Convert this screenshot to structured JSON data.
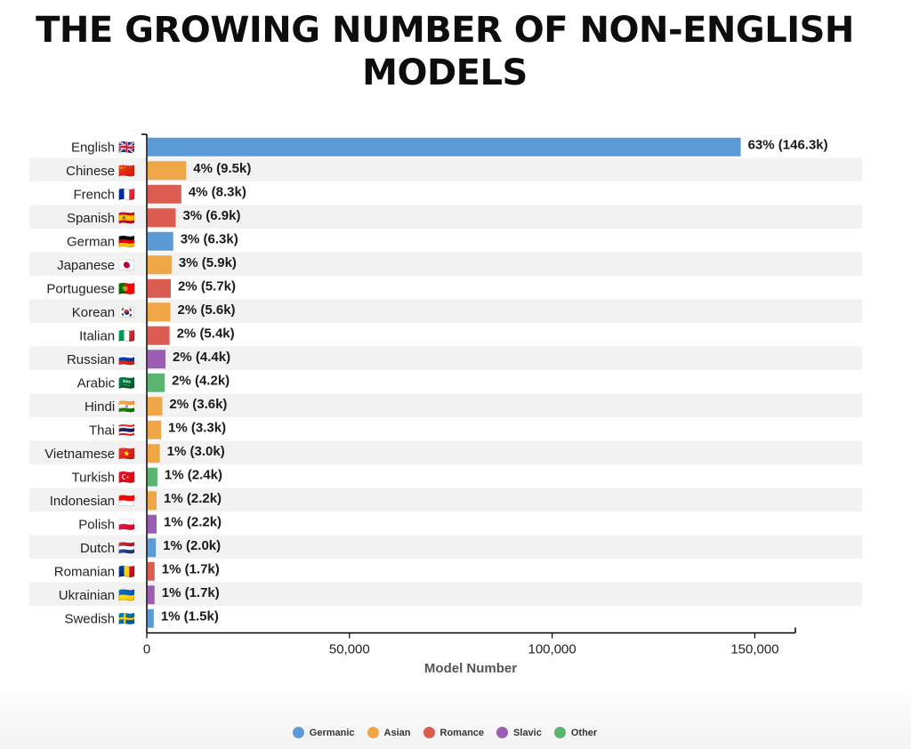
{
  "page": {
    "title": "THE GROWING NUMBER OF NON-ENGLISH MODELS"
  },
  "chart_data": {
    "type": "bar",
    "orientation": "horizontal",
    "title": "THE GROWING NUMBER OF NON-ENGLISH MODELS",
    "xlabel": "Model Number",
    "ylabel": "",
    "xlim": [
      0,
      160000
    ],
    "xticks": [
      0,
      50000,
      100000,
      150000
    ],
    "xtick_labels": [
      "0",
      "50,000",
      "100,000",
      "150,000"
    ],
    "grid": false,
    "alternating_row_shading": true,
    "legend_position": "bottom-center",
    "families": [
      {
        "name": "Germanic",
        "color": "#5b9bd5"
      },
      {
        "name": "Asian",
        "color": "#eea646"
      },
      {
        "name": "Romance",
        "color": "#db5c50"
      },
      {
        "name": "Slavic",
        "color": "#9b5cb4"
      },
      {
        "name": "Other",
        "color": "#5bb571"
      }
    ],
    "bars": [
      {
        "category": "English 🇬🇧",
        "family": "Germanic",
        "value": 146300,
        "label": "63% (146.3k)"
      },
      {
        "category": "Chinese 🇨🇳",
        "family": "Asian",
        "value": 9500,
        "label": "4% (9.5k)"
      },
      {
        "category": "French 🇫🇷",
        "family": "Romance",
        "value": 8300,
        "label": "4% (8.3k)"
      },
      {
        "category": "Spanish 🇪🇸",
        "family": "Romance",
        "value": 6900,
        "label": "3% (6.9k)"
      },
      {
        "category": "German 🇩🇪",
        "family": "Germanic",
        "value": 6300,
        "label": "3% (6.3k)"
      },
      {
        "category": "Japanese 🇯🇵",
        "family": "Asian",
        "value": 5900,
        "label": "3% (5.9k)"
      },
      {
        "category": "Portuguese 🇵🇹",
        "family": "Romance",
        "value": 5700,
        "label": "2% (5.7k)"
      },
      {
        "category": "Korean 🇰🇷",
        "family": "Asian",
        "value": 5600,
        "label": "2% (5.6k)"
      },
      {
        "category": "Italian 🇮🇹",
        "family": "Romance",
        "value": 5400,
        "label": "2% (5.4k)"
      },
      {
        "category": "Russian 🇷🇺",
        "family": "Slavic",
        "value": 4400,
        "label": "2% (4.4k)"
      },
      {
        "category": "Arabic 🇸🇦",
        "family": "Other",
        "value": 4200,
        "label": "2% (4.2k)"
      },
      {
        "category": "Hindi 🇮🇳",
        "family": "Asian",
        "value": 3600,
        "label": "2% (3.6k)"
      },
      {
        "category": "Thai 🇹🇭",
        "family": "Asian",
        "value": 3300,
        "label": "1% (3.3k)"
      },
      {
        "category": "Vietnamese 🇻🇳",
        "family": "Asian",
        "value": 3000,
        "label": "1% (3.0k)"
      },
      {
        "category": "Turkish 🇹🇷",
        "family": "Other",
        "value": 2400,
        "label": "1% (2.4k)"
      },
      {
        "category": "Indonesian 🇮🇩",
        "family": "Asian",
        "value": 2200,
        "label": "1% (2.2k)"
      },
      {
        "category": "Polish 🇵🇱",
        "family": "Slavic",
        "value": 2200,
        "label": "1% (2.2k)"
      },
      {
        "category": "Dutch 🇳🇱",
        "family": "Germanic",
        "value": 2000,
        "label": "1% (2.0k)"
      },
      {
        "category": "Romanian 🇷🇴",
        "family": "Romance",
        "value": 1700,
        "label": "1% (1.7k)"
      },
      {
        "category": "Ukrainian 🇺🇦",
        "family": "Slavic",
        "value": 1700,
        "label": "1% (1.7k)"
      },
      {
        "category": "Swedish 🇸🇪",
        "family": "Germanic",
        "value": 1500,
        "label": "1% (1.5k)"
      }
    ]
  }
}
